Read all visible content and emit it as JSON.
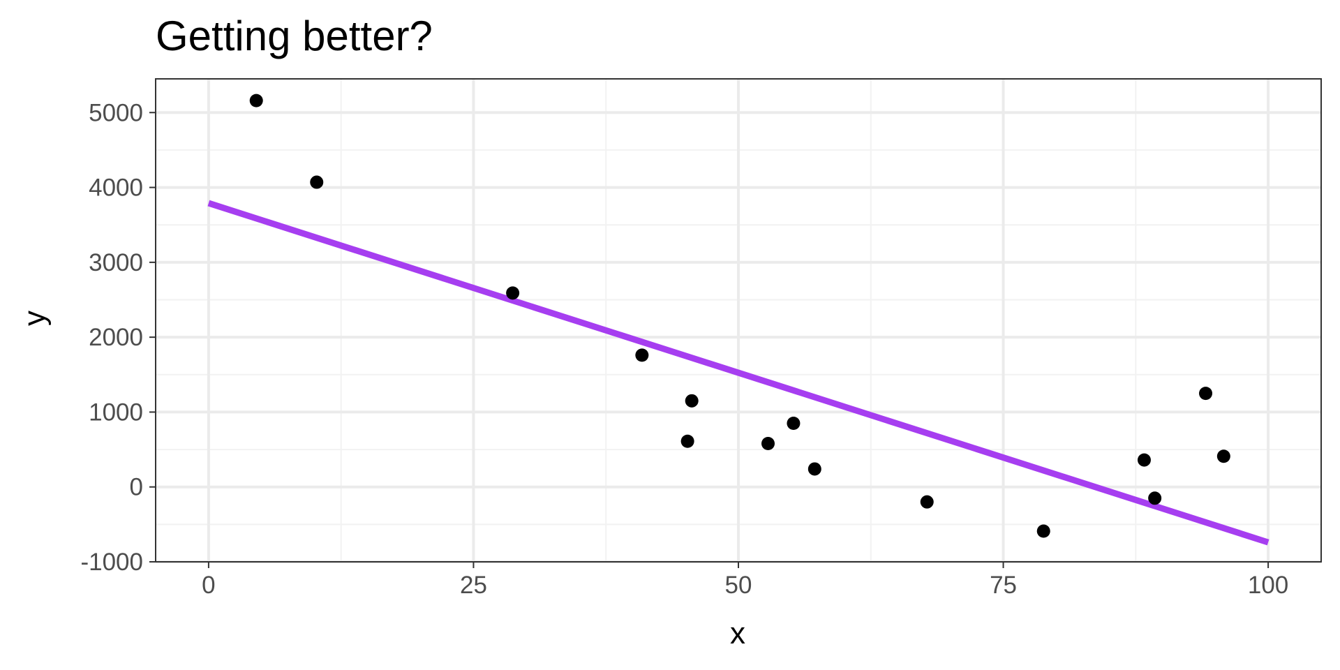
{
  "chart_data": {
    "type": "scatter",
    "title": "Getting better?",
    "xlabel": "x",
    "ylabel": "y",
    "xlim": [
      -5,
      105
    ],
    "ylim": [
      -1000,
      5450
    ],
    "x_ticks": [
      0,
      25,
      50,
      75,
      100
    ],
    "x_tick_labels": [
      "0",
      "25",
      "50",
      "75",
      "100"
    ],
    "y_ticks": [
      -1000,
      0,
      1000,
      2000,
      3000,
      4000,
      5000
    ],
    "y_tick_labels": [
      "-1000",
      "0",
      "1000",
      "2000",
      "3000",
      "4000",
      "5000"
    ],
    "grid": true,
    "points": [
      {
        "x": 4.5,
        "y": 5160
      },
      {
        "x": 10.2,
        "y": 4070
      },
      {
        "x": 28.7,
        "y": 2590
      },
      {
        "x": 40.9,
        "y": 1760
      },
      {
        "x": 45.2,
        "y": 610
      },
      {
        "x": 45.6,
        "y": 1150
      },
      {
        "x": 52.8,
        "y": 580
      },
      {
        "x": 55.2,
        "y": 850
      },
      {
        "x": 57.2,
        "y": 240
      },
      {
        "x": 67.8,
        "y": -200
      },
      {
        "x": 78.8,
        "y": -590
      },
      {
        "x": 88.3,
        "y": 360
      },
      {
        "x": 89.3,
        "y": -150
      },
      {
        "x": 94.1,
        "y": 1250
      },
      {
        "x": 95.8,
        "y": 410
      }
    ],
    "trend_line": {
      "x": [
        0,
        100
      ],
      "y": [
        3790,
        -740
      ]
    },
    "colors": {
      "points": "#000000",
      "trend_line": "#a63ef0",
      "grid_major": "#ebebeb",
      "grid_minor": "#f2f2f2",
      "panel_border": "#333333",
      "tick_text": "#4d4d4d"
    }
  }
}
